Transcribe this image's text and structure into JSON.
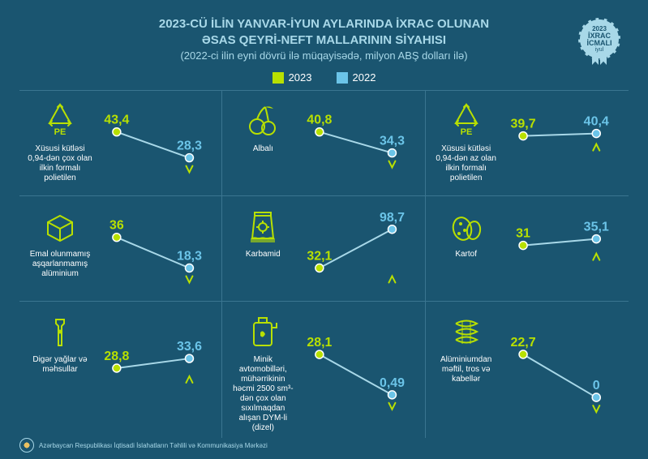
{
  "header": {
    "title_line1": "2023-CÜ İLİN YANVAR-İYUN AYLARINDA İXRAC OLUNAN",
    "title_line2": "ƏSAS QEYRİ-NEFT MALLARININ SİYAHISI",
    "subtitle": "(2022-ci ilin eyni dövrü ilə müqayisədə, milyon ABŞ dolları ilə)"
  },
  "badge": {
    "year": "2023",
    "main": "İXRAC İCMALI",
    "month": "iyul"
  },
  "legend": {
    "year_a": "2023",
    "year_b": "2022",
    "color_a": "#b8e000",
    "color_b": "#6bc4e8"
  },
  "colors": {
    "background": "#1a5570",
    "divider": "#3a7590",
    "text_light": "#a8d8e8",
    "accent_2023": "#b8e000",
    "accent_2022": "#6bc4e8",
    "point_stroke": "#ffffff",
    "arrow_up": "#b8e000",
    "arrow_down": "#b8e000"
  },
  "chart_style": {
    "point_radius": 5,
    "line_width": 2,
    "value_fontsize": 16,
    "arrow_size": 8
  },
  "items": [
    {
      "icon": "pe-recycle",
      "label": "Xüsusi kütləsi 0,94-dən çox olan ilkin formalı polietilen",
      "v2023": "43,4",
      "v2022": "28,3",
      "y2023": 40,
      "y2022": 72,
      "arrow": "down"
    },
    {
      "icon": "cherry",
      "label": "Albalı",
      "v2023": "40,8",
      "v2022": "34,3",
      "y2023": 40,
      "y2022": 66,
      "arrow": "down"
    },
    {
      "icon": "pe-recycle",
      "label": "Xüsusi kütləsi 0,94-dən az olan ilkin formalı polietilen",
      "v2023": "39,7",
      "v2022": "40,4",
      "y2023": 45,
      "y2022": 42,
      "arrow": "up"
    },
    {
      "icon": "aluminum",
      "label": "Emal olunmamış aşqarlanmamış alüminium",
      "v2023": "36",
      "v2022": "18,3",
      "y2023": 40,
      "y2022": 78,
      "arrow": "down"
    },
    {
      "icon": "carbamid",
      "label": "Karbamid",
      "v2023": "32,1",
      "v2022": "98,7",
      "y2023": 78,
      "y2022": 30,
      "arrow": "up"
    },
    {
      "icon": "potato",
      "label": "Kartof",
      "v2023": "31",
      "v2022": "35,1",
      "y2023": 50,
      "y2022": 42,
      "arrow": "up"
    },
    {
      "icon": "oil",
      "label": "Digər yağlar və məhsullar",
      "v2023": "28,8",
      "v2022": "33,6",
      "y2023": 52,
      "y2022": 40,
      "arrow": "up"
    },
    {
      "icon": "diesel",
      "label": "Minik avtomobilləri, mühərrikinin həcmi 2500 sm³-dən çox olan sıxılmaqdan alışan DYM-li (dizel)",
      "v2023": "28,1",
      "v2022": "0,49",
      "y2023": 35,
      "y2022": 85,
      "arrow": "down"
    },
    {
      "icon": "cable",
      "label": "Alüminiumdan məftil, tros və kabellər",
      "v2023": "22,7",
      "v2022": "0",
      "y2023": 35,
      "y2022": 88,
      "arrow": "down"
    }
  ],
  "footer": {
    "text": "Azərbaycan Respublikası İqtisadi İslahatların Təhlili və Kommunikasiya Mərkəzi"
  }
}
